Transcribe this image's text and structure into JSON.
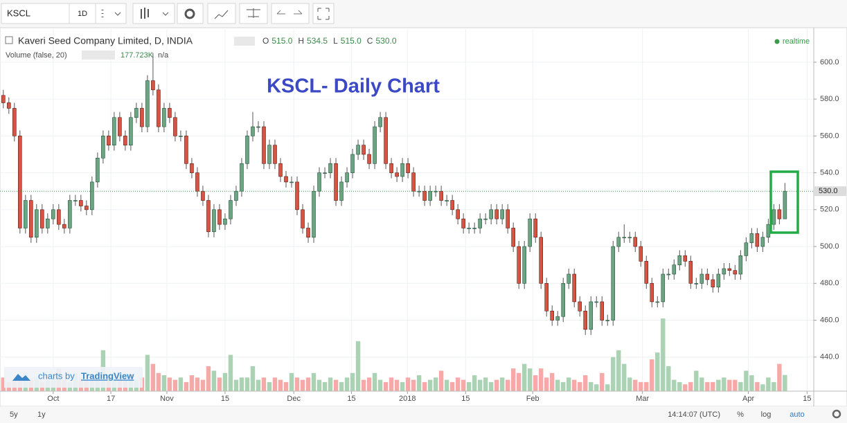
{
  "toolbar": {
    "symbol": "KSCL",
    "interval": "1D"
  },
  "chart_data": {
    "type": "candlestick",
    "title": "KSCL- Daily Chart",
    "symbol_title": "Kaveri Seed Company Limited, D, INDIA",
    "realtime": "realtime",
    "ohlc_legend": [
      {
        "key": "O",
        "value": 515,
        "label": "515.0"
      },
      {
        "key": "H",
        "value": 534.5,
        "label": "534.5"
      },
      {
        "key": "L",
        "value": 515,
        "label": "515.0"
      },
      {
        "key": "C",
        "value": 530,
        "label": "530.0"
      }
    ],
    "up_color": "#6ba583",
    "down_color": "#d75442",
    "open": [
      582,
      578,
      575,
      560,
      510,
      525,
      505,
      520,
      510,
      515,
      520,
      512,
      510,
      525,
      525,
      522,
      520,
      535,
      548,
      560,
      555,
      570,
      560,
      555,
      570,
      575,
      565,
      590,
      585,
      565,
      575,
      570,
      560,
      560,
      545,
      540,
      530,
      525,
      508,
      520,
      512,
      515,
      525,
      530,
      545,
      560,
      565,
      565,
      545,
      555,
      545,
      538,
      535,
      535,
      520,
      510,
      505,
      530,
      540,
      540,
      545,
      525,
      535,
      540,
      550,
      555,
      550,
      545,
      565,
      570,
      545,
      540,
      538,
      545,
      540,
      530,
      530,
      525,
      530,
      530,
      525,
      525,
      520,
      515,
      510,
      510,
      510,
      515,
      515,
      520,
      515,
      520,
      510,
      500,
      480,
      500,
      515,
      505,
      480,
      465,
      460,
      462,
      480,
      485,
      470,
      465,
      455,
      470,
      470,
      460,
      460,
      500,
      505,
      505,
      505,
      500,
      492,
      480,
      470,
      470,
      485,
      485,
      490,
      495,
      492,
      480,
      480,
      485,
      482,
      478,
      485,
      488,
      487,
      485,
      495,
      502,
      507,
      500,
      505,
      512,
      520,
      515
    ],
    "high": [
      585,
      581,
      578,
      563,
      528,
      528,
      523,
      523,
      518,
      523,
      523,
      515,
      528,
      528,
      528,
      525,
      538,
      551,
      563,
      563,
      573,
      573,
      563,
      573,
      578,
      578,
      593,
      605,
      588,
      578,
      578,
      573,
      563,
      563,
      548,
      543,
      533,
      528,
      523,
      523,
      518,
      528,
      533,
      548,
      563,
      573,
      568,
      568,
      558,
      558,
      548,
      541,
      538,
      538,
      523,
      513,
      533,
      543,
      543,
      548,
      548,
      538,
      543,
      553,
      558,
      558,
      553,
      568,
      573,
      573,
      548,
      543,
      548,
      548,
      543,
      533,
      533,
      533,
      533,
      533,
      528,
      528,
      523,
      518,
      513,
      513,
      518,
      518,
      523,
      523,
      523,
      523,
      513,
      503,
      503,
      518,
      518,
      508,
      483,
      468,
      465,
      483,
      488,
      488,
      473,
      468,
      473,
      473,
      473,
      463,
      503,
      508,
      512,
      508,
      508,
      503,
      495,
      483,
      473,
      488,
      488,
      493,
      498,
      498,
      495,
      483,
      488,
      488,
      485,
      488,
      491,
      491,
      490,
      498,
      505,
      510,
      510,
      508,
      515,
      523,
      523,
      534.5
    ],
    "low": [
      575,
      572,
      557,
      507,
      507,
      502,
      502,
      507,
      507,
      512,
      509,
      507,
      507,
      522,
      519,
      517,
      517,
      532,
      545,
      552,
      552,
      557,
      552,
      552,
      567,
      562,
      562,
      582,
      562,
      562,
      567,
      557,
      557,
      542,
      537,
      527,
      522,
      505,
      505,
      509,
      509,
      512,
      522,
      527,
      542,
      557,
      562,
      542,
      542,
      542,
      535,
      532,
      532,
      517,
      507,
      502,
      502,
      527,
      537,
      537,
      522,
      522,
      532,
      537,
      547,
      547,
      542,
      542,
      562,
      542,
      537,
      535,
      535,
      537,
      527,
      527,
      522,
      522,
      527,
      522,
      522,
      517,
      512,
      507,
      507,
      507,
      507,
      512,
      512,
      512,
      512,
      507,
      497,
      477,
      477,
      497,
      502,
      477,
      462,
      457,
      457,
      459,
      477,
      467,
      462,
      452,
      452,
      467,
      457,
      457,
      457,
      497,
      502,
      502,
      497,
      489,
      477,
      467,
      467,
      467,
      482,
      482,
      487,
      489,
      477,
      477,
      477,
      479,
      475,
      475,
      482,
      484,
      482,
      482,
      492,
      499,
      497,
      497,
      502,
      509,
      512,
      515
    ],
    "close": [
      578,
      575,
      560,
      510,
      525,
      505,
      520,
      510,
      515,
      520,
      512,
      510,
      525,
      525,
      522,
      520,
      535,
      548,
      560,
      555,
      570,
      560,
      555,
      570,
      575,
      565,
      590,
      585,
      565,
      575,
      570,
      560,
      560,
      545,
      540,
      530,
      525,
      508,
      520,
      512,
      515,
      525,
      530,
      545,
      560,
      565,
      565,
      545,
      555,
      545,
      538,
      535,
      535,
      520,
      510,
      505,
      530,
      540,
      540,
      545,
      525,
      535,
      540,
      550,
      555,
      550,
      545,
      565,
      570,
      545,
      540,
      538,
      545,
      540,
      530,
      530,
      525,
      530,
      530,
      525,
      525,
      520,
      515,
      510,
      510,
      510,
      515,
      515,
      520,
      515,
      520,
      510,
      500,
      480,
      500,
      515,
      505,
      480,
      465,
      460,
      462,
      480,
      485,
      470,
      465,
      455,
      470,
      470,
      460,
      460,
      500,
      505,
      505,
      505,
      500,
      492,
      480,
      470,
      470,
      485,
      485,
      490,
      495,
      492,
      480,
      480,
      485,
      482,
      478,
      485,
      488,
      487,
      485,
      495,
      502,
      507,
      500,
      505,
      512,
      520,
      515,
      530
    ],
    "volume": {
      "name": "Volume (false, 20)",
      "na": "n/a",
      "last_label": "177.723K",
      "up_color": "#a9d3b2",
      "down_color": "#f6a9a6",
      "values": [
        150,
        100,
        125,
        175,
        200,
        125,
        150,
        100,
        125,
        175,
        250,
        125,
        100,
        200,
        150,
        125,
        175,
        225,
        450,
        150,
        200,
        150,
        125,
        175,
        125,
        150,
        400,
        300,
        200,
        175,
        150,
        125,
        150,
        100,
        175,
        150,
        125,
        275,
        225,
        150,
        200,
        400,
        125,
        150,
        150,
        275,
        125,
        150,
        100,
        150,
        125,
        100,
        200,
        150,
        125,
        150,
        200,
        125,
        100,
        150,
        125,
        100,
        150,
        200,
        550,
        125,
        150,
        200,
        125,
        100,
        150,
        125,
        100,
        150,
        125,
        175,
        100,
        125,
        150,
        225,
        125,
        100,
        150,
        125,
        100,
        175,
        125,
        150,
        100,
        125,
        150,
        125,
        250,
        200,
        300,
        250,
        175,
        250,
        150,
        200,
        125,
        100,
        150,
        125,
        100,
        175,
        100,
        75,
        200,
        75,
        375,
        450,
        300,
        150,
        125,
        100,
        100,
        350,
        425,
        800,
        275,
        125,
        100,
        75,
        100,
        225,
        150,
        100,
        100,
        125,
        150,
        125,
        125,
        100,
        225,
        175,
        100,
        75,
        150,
        100,
        300,
        177.723
      ]
    },
    "last_price": {
      "value": 530,
      "label": "530.0"
    },
    "ylim": [
      421.5,
      618
    ],
    "yticks": [
      {
        "value": 440,
        "label": "440.0"
      },
      {
        "value": 460,
        "label": "460.0"
      },
      {
        "value": 480,
        "label": "480.0"
      },
      {
        "value": 500,
        "label": "500.0"
      },
      {
        "value": 520,
        "label": "520.0"
      },
      {
        "value": 540,
        "label": "540.0"
      },
      {
        "value": 560,
        "label": "560.0"
      },
      {
        "value": 580,
        "label": "580.0"
      },
      {
        "value": 600,
        "label": "600.0"
      }
    ],
    "xlim": [
      -0.6,
      146.2
    ],
    "xticks": [
      {
        "value": 9,
        "label": "Oct"
      },
      {
        "value": 19.4,
        "label": "17"
      },
      {
        "value": 29.5,
        "label": "Nov"
      },
      {
        "value": 40,
        "label": "15"
      },
      {
        "value": 52.4,
        "label": "Dec"
      },
      {
        "value": 62.8,
        "label": "15"
      },
      {
        "value": 72.9,
        "label": "2018"
      },
      {
        "value": 83.4,
        "label": "15"
      },
      {
        "value": 95.5,
        "label": "Feb"
      },
      {
        "value": 115.3,
        "label": "Mar"
      },
      {
        "value": 134.4,
        "label": "Apr"
      },
      {
        "value": 145,
        "label": "15"
      }
    ],
    "grid": true
  },
  "branding": {
    "prefix": "charts by",
    "name": "TradingView"
  },
  "footer": {
    "ranges": [
      "5y",
      "1y"
    ],
    "time": "14:14:07 (UTC)",
    "options": [
      "%",
      "log",
      "auto"
    ]
  }
}
